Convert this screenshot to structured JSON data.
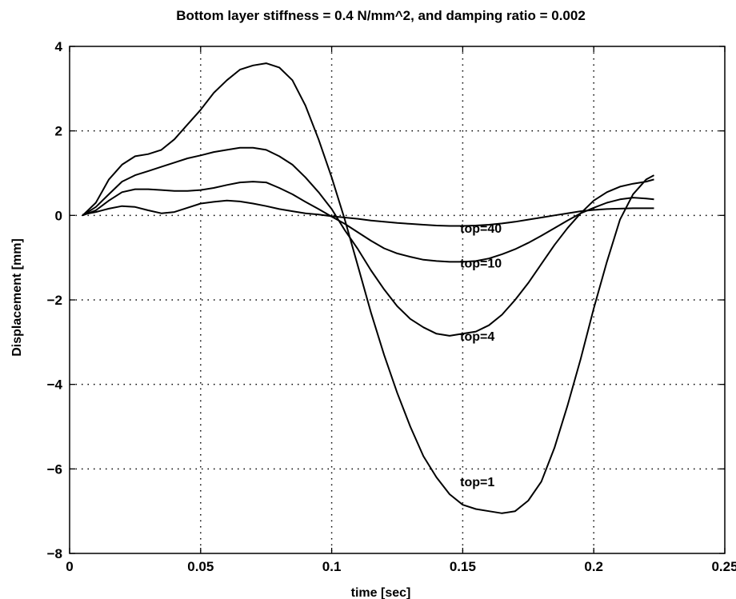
{
  "chart_data": {
    "type": "line",
    "title": "Bottom layer stiffness = 0.4 N/mm^2, and damping ratio = 0.002",
    "xlabel": "time [sec]",
    "ylabel": "Displacement [mm]",
    "xlim": [
      0,
      0.25
    ],
    "ylim": [
      -8,
      4
    ],
    "xticks": [
      0,
      0.05,
      0.1,
      0.15,
      0.2,
      0.25
    ],
    "xtick_labels": [
      "0",
      "0.05",
      "0.1",
      "0.15",
      "0.2",
      "0.25"
    ],
    "yticks": [
      -8,
      -6,
      -4,
      -2,
      0,
      2,
      4
    ],
    "ytick_labels": [
      "−8",
      "−6",
      "−4",
      "−2",
      "0",
      "2",
      "4"
    ],
    "grid": true,
    "line_color": "#000000",
    "series": [
      {
        "name": "top=1",
        "x": [
          0.005,
          0.01,
          0.015,
          0.02,
          0.025,
          0.03,
          0.035,
          0.04,
          0.045,
          0.05,
          0.055,
          0.06,
          0.065,
          0.07,
          0.075,
          0.08,
          0.085,
          0.09,
          0.095,
          0.1,
          0.105,
          0.11,
          0.115,
          0.12,
          0.125,
          0.13,
          0.135,
          0.14,
          0.145,
          0.15,
          0.155,
          0.16,
          0.165,
          0.17,
          0.175,
          0.18,
          0.185,
          0.19,
          0.195,
          0.2,
          0.205,
          0.21,
          0.215,
          0.22,
          0.223
        ],
        "y": [
          0.0,
          0.3,
          0.85,
          1.2,
          1.4,
          1.45,
          1.55,
          1.8,
          2.15,
          2.5,
          2.9,
          3.2,
          3.45,
          3.55,
          3.6,
          3.5,
          3.2,
          2.6,
          1.8,
          0.9,
          -0.1,
          -1.2,
          -2.3,
          -3.3,
          -4.2,
          -5.0,
          -5.7,
          -6.2,
          -6.6,
          -6.85,
          -6.95,
          -7.0,
          -7.05,
          -7.0,
          -6.75,
          -6.3,
          -5.5,
          -4.5,
          -3.4,
          -2.2,
          -1.1,
          -0.1,
          0.5,
          0.85,
          0.95
        ]
      },
      {
        "name": "top=4",
        "x": [
          0.005,
          0.01,
          0.015,
          0.02,
          0.025,
          0.03,
          0.035,
          0.04,
          0.045,
          0.05,
          0.055,
          0.06,
          0.065,
          0.07,
          0.075,
          0.08,
          0.085,
          0.09,
          0.095,
          0.1,
          0.105,
          0.11,
          0.115,
          0.12,
          0.125,
          0.13,
          0.135,
          0.14,
          0.145,
          0.15,
          0.155,
          0.16,
          0.165,
          0.17,
          0.175,
          0.18,
          0.185,
          0.19,
          0.195,
          0.2,
          0.205,
          0.21,
          0.215,
          0.22,
          0.223
        ],
        "y": [
          0.0,
          0.2,
          0.5,
          0.8,
          0.95,
          1.05,
          1.15,
          1.25,
          1.35,
          1.42,
          1.5,
          1.55,
          1.6,
          1.6,
          1.55,
          1.4,
          1.2,
          0.9,
          0.55,
          0.15,
          -0.35,
          -0.8,
          -1.3,
          -1.75,
          -2.15,
          -2.45,
          -2.65,
          -2.8,
          -2.85,
          -2.8,
          -2.75,
          -2.6,
          -2.35,
          -2.0,
          -1.6,
          -1.15,
          -0.7,
          -0.3,
          0.05,
          0.35,
          0.55,
          0.68,
          0.75,
          0.8,
          0.85
        ]
      },
      {
        "name": "top=10",
        "x": [
          0.005,
          0.01,
          0.015,
          0.02,
          0.025,
          0.03,
          0.035,
          0.04,
          0.045,
          0.05,
          0.055,
          0.06,
          0.065,
          0.07,
          0.075,
          0.08,
          0.085,
          0.09,
          0.095,
          0.1,
          0.105,
          0.11,
          0.115,
          0.12,
          0.125,
          0.13,
          0.135,
          0.14,
          0.145,
          0.15,
          0.155,
          0.16,
          0.165,
          0.17,
          0.175,
          0.18,
          0.185,
          0.19,
          0.195,
          0.2,
          0.205,
          0.21,
          0.215,
          0.22,
          0.223
        ],
        "y": [
          0.0,
          0.12,
          0.35,
          0.55,
          0.62,
          0.62,
          0.6,
          0.58,
          0.58,
          0.6,
          0.65,
          0.72,
          0.78,
          0.8,
          0.78,
          0.65,
          0.5,
          0.32,
          0.15,
          -0.03,
          -0.2,
          -0.4,
          -0.6,
          -0.78,
          -0.9,
          -0.98,
          -1.05,
          -1.08,
          -1.1,
          -1.1,
          -1.08,
          -1.02,
          -0.92,
          -0.8,
          -0.65,
          -0.48,
          -0.3,
          -0.12,
          0.05,
          0.18,
          0.3,
          0.38,
          0.42,
          0.4,
          0.38
        ]
      },
      {
        "name": "top=40",
        "x": [
          0.005,
          0.01,
          0.015,
          0.02,
          0.025,
          0.03,
          0.035,
          0.04,
          0.045,
          0.05,
          0.055,
          0.06,
          0.065,
          0.07,
          0.075,
          0.08,
          0.085,
          0.09,
          0.095,
          0.1,
          0.105,
          0.11,
          0.115,
          0.12,
          0.125,
          0.13,
          0.135,
          0.14,
          0.145,
          0.15,
          0.155,
          0.16,
          0.165,
          0.17,
          0.175,
          0.18,
          0.185,
          0.19,
          0.195,
          0.2,
          0.205,
          0.21,
          0.215,
          0.22,
          0.223
        ],
        "y": [
          0.02,
          0.08,
          0.16,
          0.22,
          0.2,
          0.12,
          0.05,
          0.08,
          0.18,
          0.28,
          0.32,
          0.35,
          0.33,
          0.28,
          0.22,
          0.15,
          0.1,
          0.05,
          0.02,
          -0.02,
          -0.05,
          -0.08,
          -0.12,
          -0.15,
          -0.18,
          -0.2,
          -0.22,
          -0.24,
          -0.25,
          -0.25,
          -0.24,
          -0.22,
          -0.19,
          -0.15,
          -0.1,
          -0.05,
          0.0,
          0.05,
          0.1,
          0.13,
          0.15,
          0.16,
          0.17,
          0.17,
          0.17
        ]
      }
    ],
    "annotations": [
      {
        "text": "top=40",
        "x": 0.149,
        "y": -0.3
      },
      {
        "text": "top=10",
        "x": 0.149,
        "y": -1.12
      },
      {
        "text": "top=4",
        "x": 0.149,
        "y": -2.85
      },
      {
        "text": "top=1",
        "x": 0.149,
        "y": -6.3
      }
    ]
  }
}
